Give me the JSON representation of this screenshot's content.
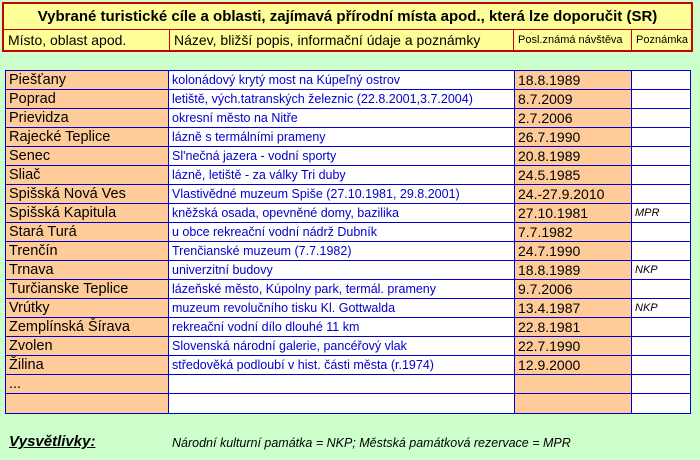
{
  "header": {
    "title": "Vybrané turistické cíle a oblasti, zajímavá přírodní místa apod., která lze doporučit (SR)",
    "col_place": "Místo, oblast apod.",
    "col_desc": "Název, bližší popis, informační údaje a poznámky",
    "col_date": "Posl.známá návštěva",
    "col_note": "Poznámka"
  },
  "rows": [
    {
      "place": "Piešťany",
      "desc": "kolonádový krytý most na Kúpeľný ostrov",
      "date": "18.8.1989",
      "note": ""
    },
    {
      "place": "Poprad",
      "desc": "letiště, vých.tatranských železnic (22.8.2001,3.7.2004)",
      "date": "8.7.2009",
      "note": ""
    },
    {
      "place": "Prievidza",
      "desc": "okresní město na Nitře",
      "date": "2.7.2006",
      "note": ""
    },
    {
      "place": "Rajecké Teplice",
      "desc": "lázně s termálními prameny",
      "date": "26.7.1990",
      "note": ""
    },
    {
      "place": "Senec",
      "desc": "Sl'nečná jazera - vodní sporty",
      "date": "20.8.1989",
      "note": ""
    },
    {
      "place": "Sliač",
      "desc": "lázně, letiště - za války Tri duby",
      "date": "24.5.1985",
      "note": ""
    },
    {
      "place": "Spišská Nová Ves",
      "desc": "Vlastivědné muzeum Spiše (27.10.1981, 29.8.2001)",
      "date": "24.-27.9.2010",
      "note": ""
    },
    {
      "place": "Spišská Kapitula",
      "desc": "kněžská osada, opevněné domy, bazilika",
      "date": "27.10.1981",
      "note": "MPR"
    },
    {
      "place": "Stará Turá",
      "desc": "u obce rekreační vodní nádrž Dubník",
      "date": "7.7.1982",
      "note": ""
    },
    {
      "place": "Trenčín",
      "desc": "Trenčianské muzeum (7.7.1982)",
      "date": "24.7.1990",
      "note": ""
    },
    {
      "place": "Trnava",
      "desc": "univerzitní budovy",
      "date": "18.8.1989",
      "note": "NKP"
    },
    {
      "place": "Turčianske Teplice",
      "desc": "lázeňské město, Kúpolny park, termál. prameny",
      "date": "9.7.2006",
      "note": ""
    },
    {
      "place": "Vrútky",
      "desc": "muzeum revolučního tisku Kl. Gottwalda",
      "date": "13.4.1987",
      "note": "NKP"
    },
    {
      "place": "Zemplínská Šírava",
      "desc": "rekreační vodní dílo dlouhé 11 km",
      "date": "22.8.1981",
      "note": ""
    },
    {
      "place": "Zvolen",
      "desc": "Slovenská národní galerie, pancéřový vlak",
      "date": "22.7.1990",
      "note": ""
    },
    {
      "place": "Žilina",
      "desc": "středověká podloubí v hist. části města (r.1974)",
      "date": "12.9.2000",
      "note": ""
    },
    {
      "place": "...",
      "desc": "",
      "date": "",
      "note": ""
    },
    {
      "place": "",
      "desc": "",
      "date": "",
      "note": ""
    }
  ],
  "legend": {
    "label": "Vysvětlivky:",
    "text": "Národní kulturní památka = NKP;  Městská památková rezervace = MPR"
  },
  "colors": {
    "background": "#ccffcc",
    "header_bg": "#ffff99",
    "header_border": "#cc0000",
    "place_bg": "#ffcc99",
    "desc_text": "#0000cc",
    "grid": "#0000cc"
  }
}
